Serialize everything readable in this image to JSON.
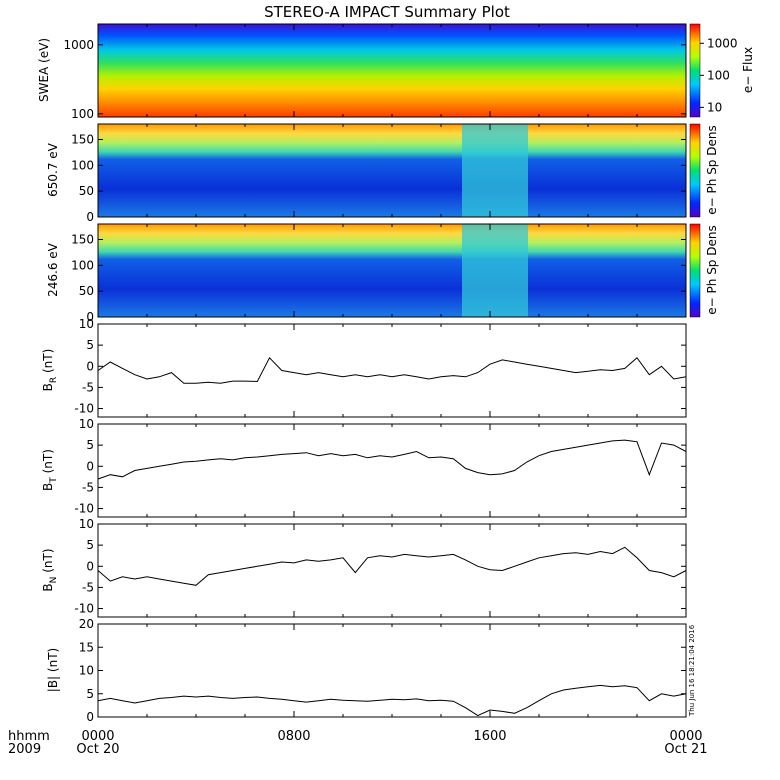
{
  "title": "STEREO-A IMPACT Summary Plot",
  "footer": {
    "time_label": "hhmm",
    "year_label": "2009"
  },
  "timestamp": "Thu Jun 16 18:21:04 2016",
  "chart_data": [
    {
      "id": "swea",
      "type": "heatmap",
      "ylabel": "SWEA (eV)",
      "yscale": "log",
      "ylim": [
        90,
        2000
      ],
      "yticks": [
        100,
        1000
      ],
      "ytick_labels": [
        "100",
        "1000"
      ],
      "colorbar": {
        "label": "e− Flux",
        "scale": "log",
        "ticks": [
          10,
          100,
          1000
        ],
        "tick_labels": [
          "10",
          "100",
          "1000"
        ]
      }
    },
    {
      "id": "pad650",
      "type": "heatmap",
      "ylabel": "650.7 eV",
      "ylim": [
        0,
        180
      ],
      "yticks": [
        0,
        50,
        100,
        150
      ],
      "colorbar": {
        "label": "e− Ph Sp Dens"
      }
    },
    {
      "id": "pad246",
      "type": "heatmap",
      "ylabel": "246.6 eV",
      "ylim": [
        0,
        180
      ],
      "yticks": [
        0,
        50,
        100,
        150
      ],
      "colorbar": {
        "label": "e− Ph Sp Dens"
      }
    },
    {
      "id": "br",
      "type": "line",
      "ylabel": "B",
      "ylabel_sub": "R",
      "ylabel_unit": "(nT)",
      "ylim": [
        -12,
        10
      ],
      "yticks": [
        -10,
        -5,
        0,
        5,
        10
      ],
      "x": [
        0,
        0.5,
        1,
        1.5,
        2,
        2.5,
        3,
        3.5,
        4,
        4.5,
        5,
        5.5,
        6,
        6.5,
        7,
        7.5,
        8,
        8.5,
        9,
        9.5,
        10,
        10.5,
        11,
        11.5,
        12,
        12.5,
        13,
        13.5,
        14,
        14.5,
        15,
        15.5,
        16,
        16.5,
        17,
        17.5,
        18,
        18.5,
        19,
        19.5,
        20,
        20.5,
        21,
        21.5,
        22,
        22.5,
        23,
        23.5,
        24
      ],
      "y": [
        -1,
        1,
        -0.5,
        -2,
        -3,
        -2.5,
        -1.5,
        -4,
        -4,
        -3.8,
        -4,
        -3.5,
        -3.5,
        -3.6,
        2,
        -1,
        -1.5,
        -2,
        -1.5,
        -2,
        -2.5,
        -2,
        -2.5,
        -2,
        -2.5,
        -2,
        -2.5,
        -3,
        -2.5,
        -2.2,
        -2.5,
        -1.5,
        0.5,
        1.5,
        1,
        0.5,
        0,
        -0.5,
        -1,
        -1.5,
        -1.2,
        -0.8,
        -1,
        -0.5,
        2,
        -2,
        0,
        -3,
        -2.5
      ]
    },
    {
      "id": "bt",
      "type": "line",
      "ylabel": "B",
      "ylabel_sub": "T",
      "ylabel_unit": "(nT)",
      "ylim": [
        -12,
        10
      ],
      "yticks": [
        -10,
        -5,
        0,
        5,
        10
      ],
      "x": [
        0,
        0.5,
        1,
        1.5,
        2,
        2.5,
        3,
        3.5,
        4,
        4.5,
        5,
        5.5,
        6,
        6.5,
        7,
        7.5,
        8,
        8.5,
        9,
        9.5,
        10,
        10.5,
        11,
        11.5,
        12,
        12.5,
        13,
        13.5,
        14,
        14.5,
        15,
        15.5,
        16,
        16.5,
        17,
        17.5,
        18,
        18.5,
        19,
        19.5,
        20,
        20.5,
        21,
        21.5,
        22,
        22.5,
        23,
        23.5,
        24
      ],
      "y": [
        -3,
        -2,
        -2.5,
        -1,
        -0.5,
        0,
        0.5,
        1,
        1.2,
        1.5,
        1.8,
        1.5,
        2,
        2.2,
        2.5,
        2.8,
        3,
        3.2,
        2.5,
        3,
        2.5,
        2.8,
        2,
        2.5,
        2.2,
        2.8,
        3.5,
        2,
        2.2,
        1.8,
        -0.5,
        -1.5,
        -2,
        -1.8,
        -1,
        1,
        2.5,
        3.5,
        4,
        4.5,
        5,
        5.5,
        6,
        6.2,
        5.8,
        -2,
        5.5,
        5,
        3.5
      ]
    },
    {
      "id": "bn",
      "type": "line",
      "ylabel": "B",
      "ylabel_sub": "N",
      "ylabel_unit": "(nT)",
      "ylim": [
        -12,
        10
      ],
      "yticks": [
        -10,
        -5,
        0,
        5,
        10
      ],
      "x": [
        0,
        0.5,
        1,
        1.5,
        2,
        2.5,
        3,
        3.5,
        4,
        4.5,
        5,
        5.5,
        6,
        6.5,
        7,
        7.5,
        8,
        8.5,
        9,
        9.5,
        10,
        10.5,
        11,
        11.5,
        12,
        12.5,
        13,
        13.5,
        14,
        14.5,
        15,
        15.5,
        16,
        16.5,
        17,
        17.5,
        18,
        18.5,
        19,
        19.5,
        20,
        20.5,
        21,
        21.5,
        22,
        22.5,
        23,
        23.5,
        24
      ],
      "y": [
        -1,
        -3.5,
        -2.5,
        -3,
        -2.5,
        -3,
        -3.5,
        -4,
        -4.5,
        -2,
        -1.5,
        -1,
        -0.5,
        0,
        0.5,
        1,
        0.8,
        1.5,
        1.2,
        1.5,
        2,
        -1.5,
        2,
        2.5,
        2.2,
        2.8,
        2.5,
        2.2,
        2.5,
        2.8,
        1.5,
        0,
        -0.8,
        -1,
        0,
        1,
        2,
        2.5,
        3,
        3.2,
        2.8,
        3.5,
        3,
        4.5,
        2,
        -1,
        -1.5,
        -2.5,
        -1
      ]
    },
    {
      "id": "bmag",
      "type": "line",
      "ylabel": "|B| (nT)",
      "ylim": [
        0,
        20
      ],
      "yticks": [
        0,
        5,
        10,
        15,
        20
      ],
      "x": [
        0,
        0.5,
        1,
        1.5,
        2,
        2.5,
        3,
        3.5,
        4,
        4.5,
        5,
        5.5,
        6,
        6.5,
        7,
        7.5,
        8,
        8.5,
        9,
        9.5,
        10,
        10.5,
        11,
        11.5,
        12,
        12.5,
        13,
        13.5,
        14,
        14.5,
        15,
        15.5,
        16,
        16.5,
        17,
        17.5,
        18,
        18.5,
        19,
        19.5,
        20,
        20.5,
        21,
        21.5,
        22,
        22.5,
        23,
        23.5,
        24
      ],
      "y": [
        3.5,
        4,
        3.5,
        3,
        3.5,
        4,
        4.2,
        4.5,
        4.3,
        4.5,
        4.2,
        4,
        4.2,
        4.3,
        4,
        3.8,
        3.5,
        3.2,
        3.5,
        3.8,
        3.6,
        3.5,
        3.4,
        3.6,
        3.8,
        3.7,
        3.9,
        3.5,
        3.6,
        3.4,
        2,
        0.3,
        1.5,
        1.2,
        0.8,
        2,
        3.5,
        5,
        5.8,
        6.2,
        6.5,
        6.8,
        6.5,
        6.7,
        6.3,
        3.5,
        5,
        4.5,
        5
      ]
    }
  ],
  "xaxis": {
    "ticks": [
      0,
      8,
      16,
      24
    ],
    "tick_labels": [
      "0000",
      "0800",
      "1600",
      "0000"
    ],
    "date_labels": [
      {
        "text": "Oct 20",
        "at": 0
      },
      {
        "text": "Oct 21",
        "at": 24
      }
    ]
  }
}
